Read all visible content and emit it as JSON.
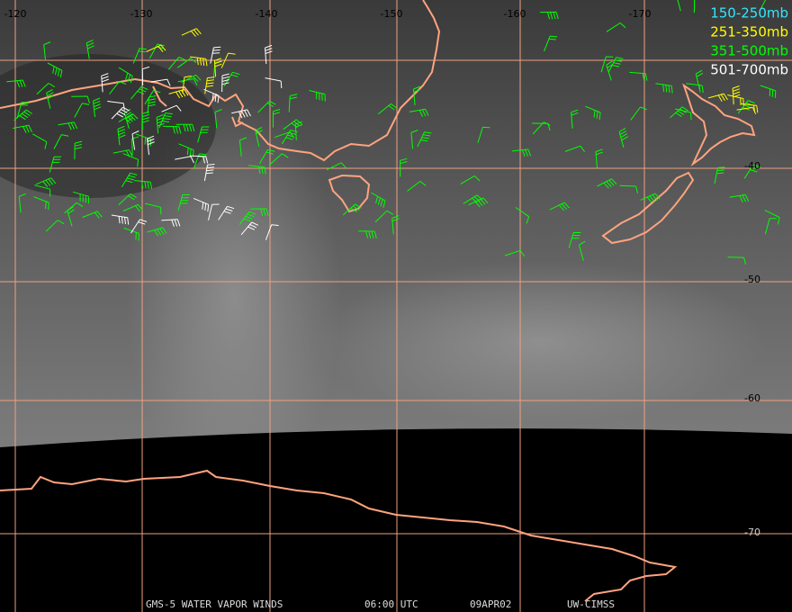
{
  "longitude_labels": [
    "-120",
    "-130",
    "-140",
    "-150",
    "-160",
    "-170"
  ],
  "latitude_labels": [
    "-40",
    "-50",
    "-60",
    "-70"
  ],
  "legend": [
    {
      "label": "150-250mb",
      "color": "#33e6ff"
    },
    {
      "label": "251-350mb",
      "color": "#ffff00"
    },
    {
      "label": "351-500mb",
      "color": "#00ff00"
    },
    {
      "label": "501-700mb",
      "color": "#ffffff"
    }
  ],
  "footer": [
    "GMS-5 WATER VAPOR WINDS",
    "06:00 UTC",
    "09APR02",
    "UW-CIMSS"
  ]
}
